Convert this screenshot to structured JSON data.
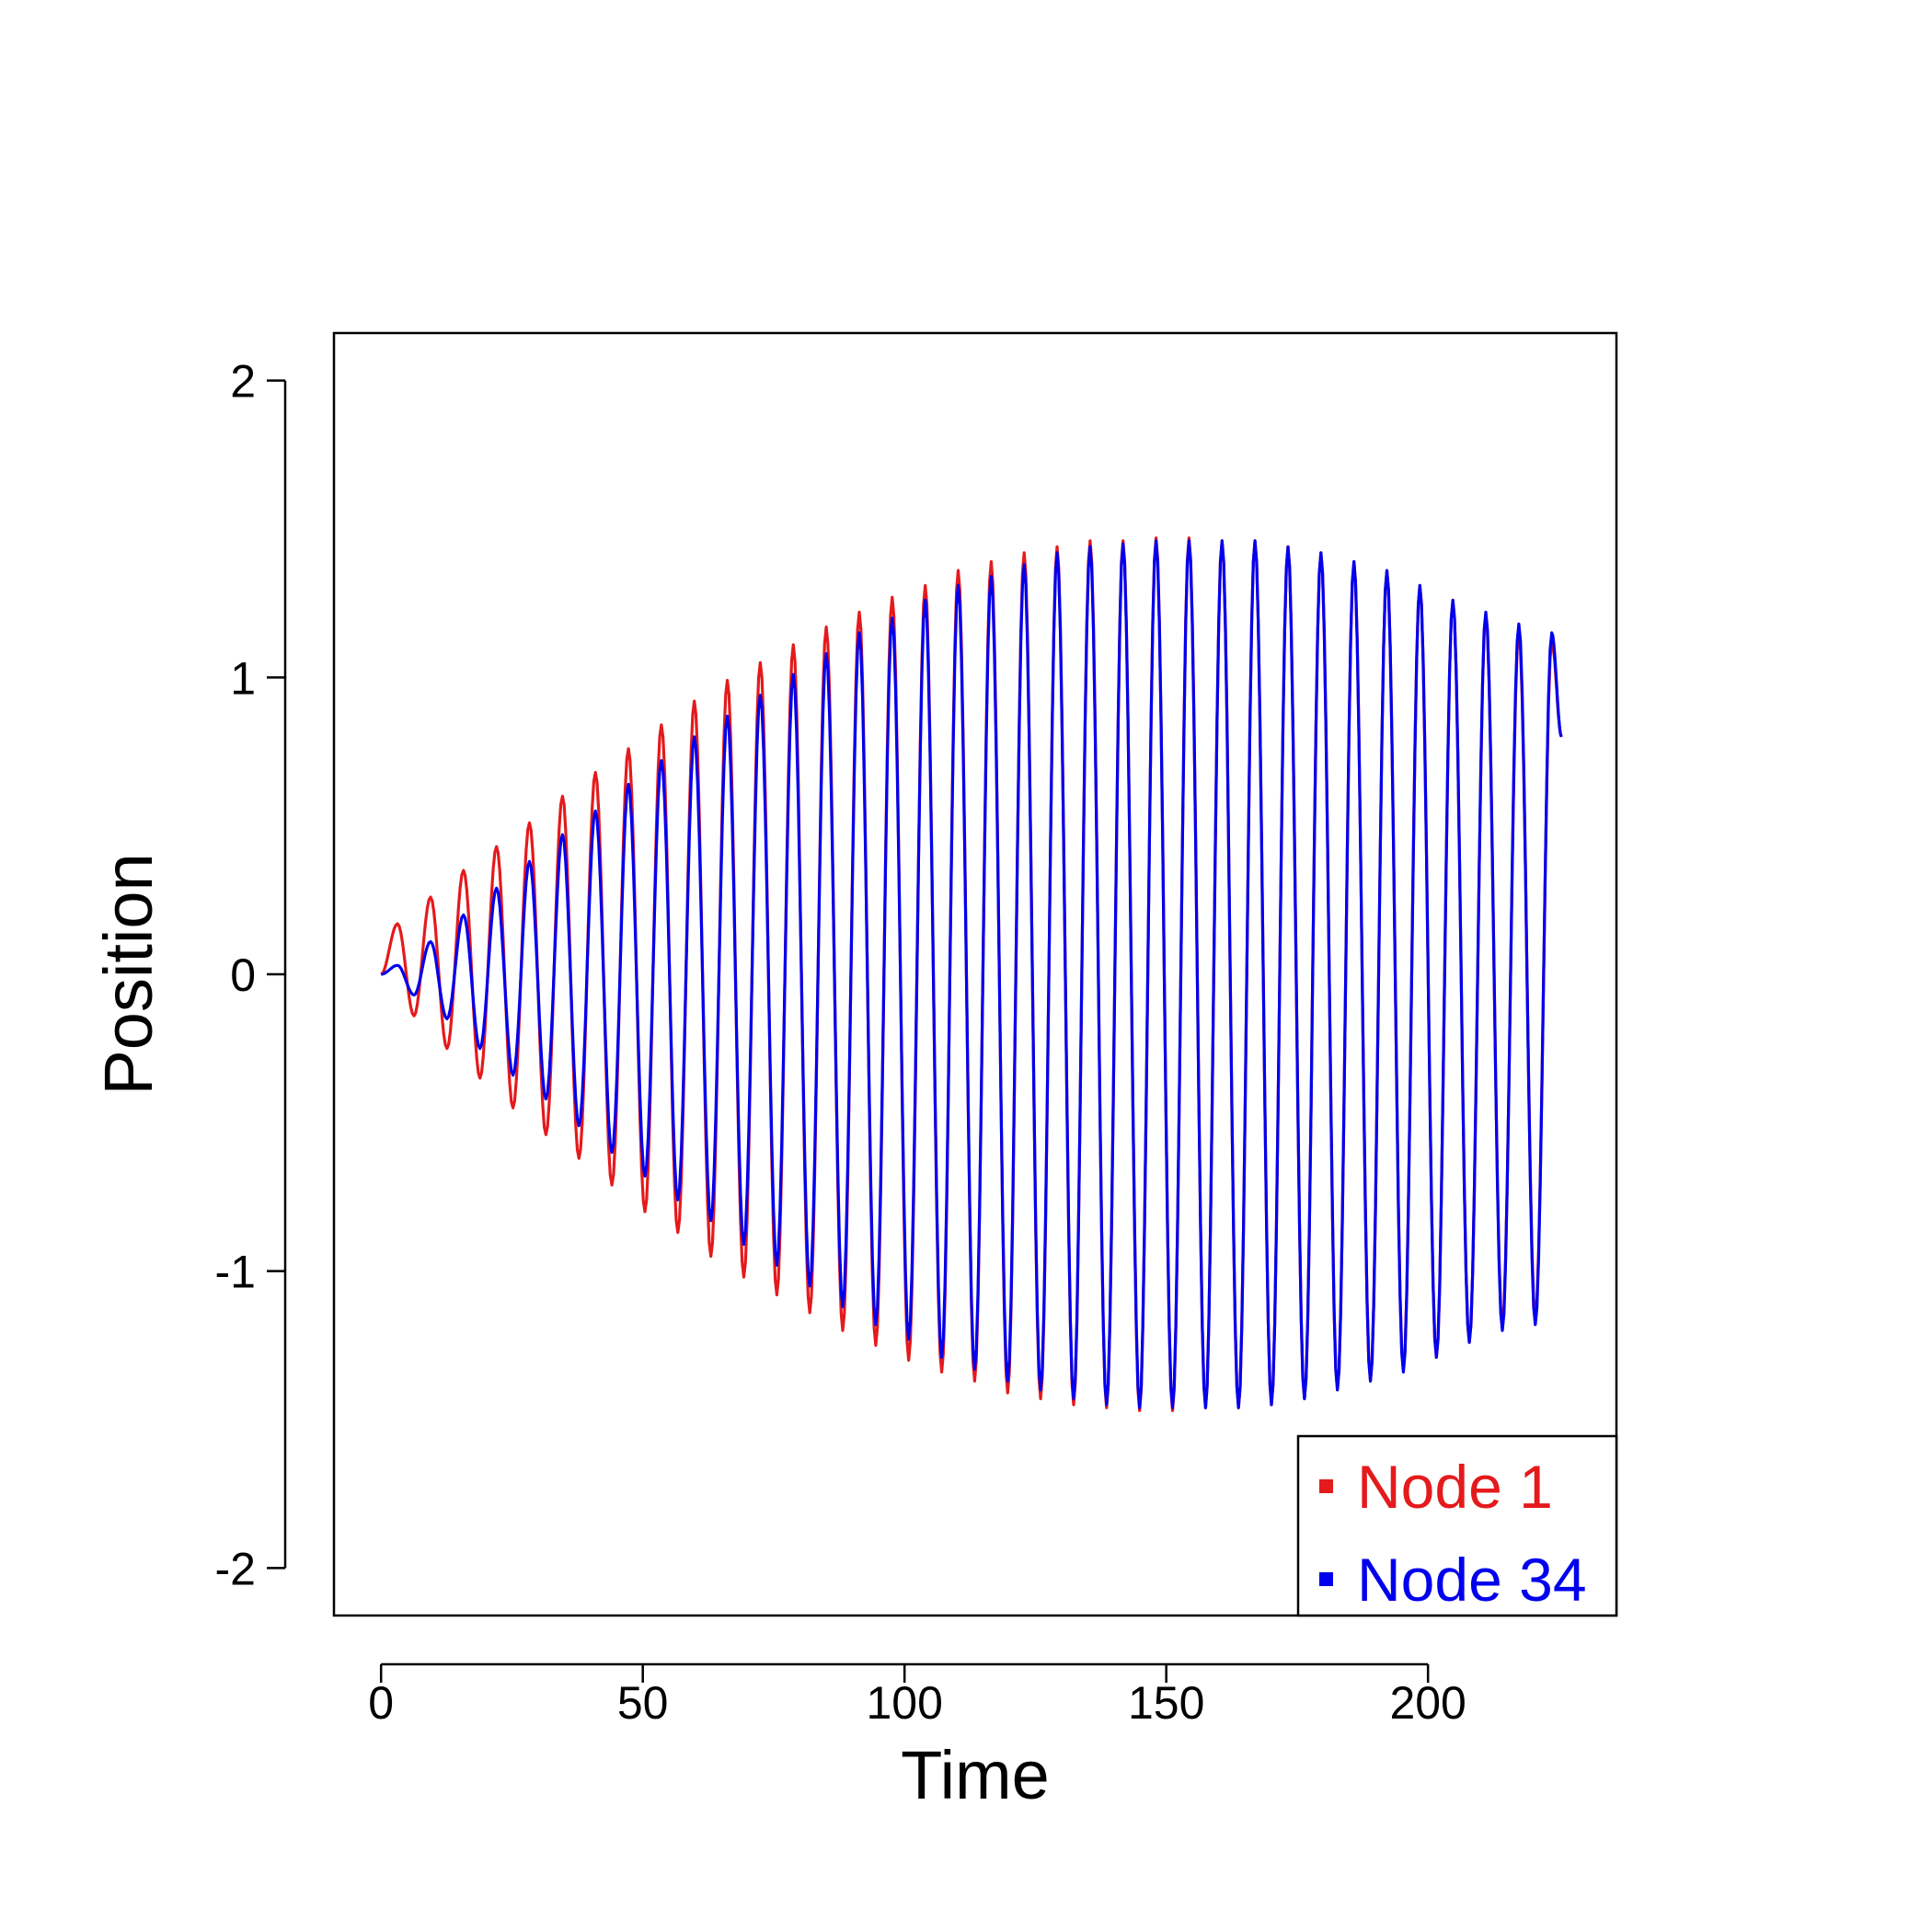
{
  "chart_data": {
    "type": "line",
    "xlabel": "Time",
    "ylabel": "Position",
    "xlim": [
      -9,
      236
    ],
    "ylim": [
      -2.16,
      2.16
    ],
    "x_ticks": [
      0,
      50,
      100,
      150,
      200
    ],
    "y_ticks": [
      -2,
      -1,
      0,
      1,
      2
    ],
    "x_tick_labels": [
      "0",
      "50",
      "100",
      "150",
      "200"
    ],
    "y_tick_labels": [
      "-2",
      "-1",
      "0",
      "1",
      "2"
    ],
    "grid": false,
    "legend_position": "bottom-right",
    "period": 6.3,
    "series": [
      {
        "name": "Node 1",
        "color": "#e41a1c",
        "x": [
          0,
          3.15,
          6.3,
          9.45,
          12.6,
          15.75,
          18.9,
          22.05,
          25.2,
          28.35,
          31.5,
          34.65,
          37.8,
          40.95,
          44.1,
          47.25,
          50.4,
          53.55,
          56.7,
          59.85,
          63.0,
          66.15,
          69.3,
          72.45,
          75.6,
          78.75,
          81.9,
          85.05,
          88.2,
          91.35,
          94.5,
          97.65,
          100.8,
          103.95,
          107.1,
          110.25,
          113.4,
          116.55,
          119.7,
          122.85,
          126.0,
          129.15,
          132.3,
          135.45,
          138.6,
          141.75,
          144.9,
          148.05,
          151.2,
          154.35,
          157.5,
          160.65,
          163.8,
          166.95,
          170.1,
          173.25,
          176.4,
          179.55,
          182.7,
          185.85,
          189.0,
          192.15,
          195.3,
          198.45,
          201.6,
          204.75,
          207.9,
          211.05,
          214.2,
          217.35,
          220.5,
          223.65,
          225.5
        ],
        "y": [
          0,
          0.17,
          -0.14,
          0.26,
          -0.25,
          0.35,
          -0.35,
          0.43,
          -0.45,
          0.51,
          -0.54,
          0.6,
          -0.62,
          0.68,
          -0.71,
          0.76,
          -0.8,
          0.84,
          -0.87,
          0.92,
          -0.95,
          0.99,
          -1.02,
          1.05,
          -1.08,
          1.11,
          -1.14,
          1.17,
          -1.2,
          1.22,
          -1.25,
          1.27,
          -1.3,
          1.31,
          -1.34,
          1.36,
          -1.37,
          1.39,
          -1.41,
          1.42,
          -1.43,
          1.44,
          -1.45,
          1.46,
          -1.46,
          1.46,
          -1.47,
          1.47,
          -1.47,
          1.47,
          -1.46,
          1.46,
          -1.46,
          1.46,
          -1.45,
          1.44,
          -1.43,
          1.42,
          -1.4,
          1.39,
          -1.37,
          1.36,
          -1.33,
          1.31,
          -1.29,
          1.26,
          -1.24,
          1.21,
          -1.18,
          1.15,
          -1.15,
          1.12,
          0.8
        ]
      },
      {
        "name": "Node 34",
        "color": "#0000ee",
        "x": [
          0,
          3.15,
          6.3,
          9.45,
          12.6,
          15.75,
          18.9,
          22.05,
          25.2,
          28.35,
          31.5,
          34.65,
          37.8,
          40.95,
          44.1,
          47.25,
          50.4,
          53.55,
          56.7,
          59.85,
          63.0,
          66.15,
          69.3,
          72.45,
          75.6,
          78.75,
          81.9,
          85.05,
          88.2,
          91.35,
          94.5,
          97.65,
          100.8,
          103.95,
          107.1,
          110.25,
          113.4,
          116.55,
          119.7,
          122.85,
          126.0,
          129.15,
          132.3,
          135.45,
          138.6,
          141.75,
          144.9,
          148.05,
          151.2,
          154.35,
          157.5,
          160.65,
          163.8,
          166.95,
          170.1,
          173.25,
          176.4,
          179.55,
          182.7,
          185.85,
          189.0,
          192.15,
          195.3,
          198.45,
          201.6,
          204.75,
          207.9,
          211.05,
          214.2,
          217.35,
          220.5,
          223.65,
          225.5
        ],
        "y": [
          0,
          0.03,
          -0.07,
          0.11,
          -0.15,
          0.2,
          -0.25,
          0.29,
          -0.34,
          0.38,
          -0.42,
          0.47,
          -0.51,
          0.55,
          -0.6,
          0.64,
          -0.68,
          0.72,
          -0.76,
          0.8,
          -0.83,
          0.87,
          -0.91,
          0.94,
          -0.98,
          1.01,
          -1.05,
          1.08,
          -1.12,
          1.15,
          -1.18,
          1.2,
          -1.23,
          1.26,
          -1.29,
          1.31,
          -1.33,
          1.34,
          -1.37,
          1.38,
          -1.4,
          1.42,
          -1.43,
          1.44,
          -1.45,
          1.45,
          -1.46,
          1.46,
          -1.46,
          1.46,
          -1.46,
          1.46,
          -1.46,
          1.46,
          -1.45,
          1.44,
          -1.43,
          1.42,
          -1.4,
          1.39,
          -1.37,
          1.36,
          -1.34,
          1.31,
          -1.29,
          1.26,
          -1.24,
          1.22,
          -1.2,
          1.18,
          -1.18,
          1.15,
          0.8
        ]
      }
    ]
  }
}
